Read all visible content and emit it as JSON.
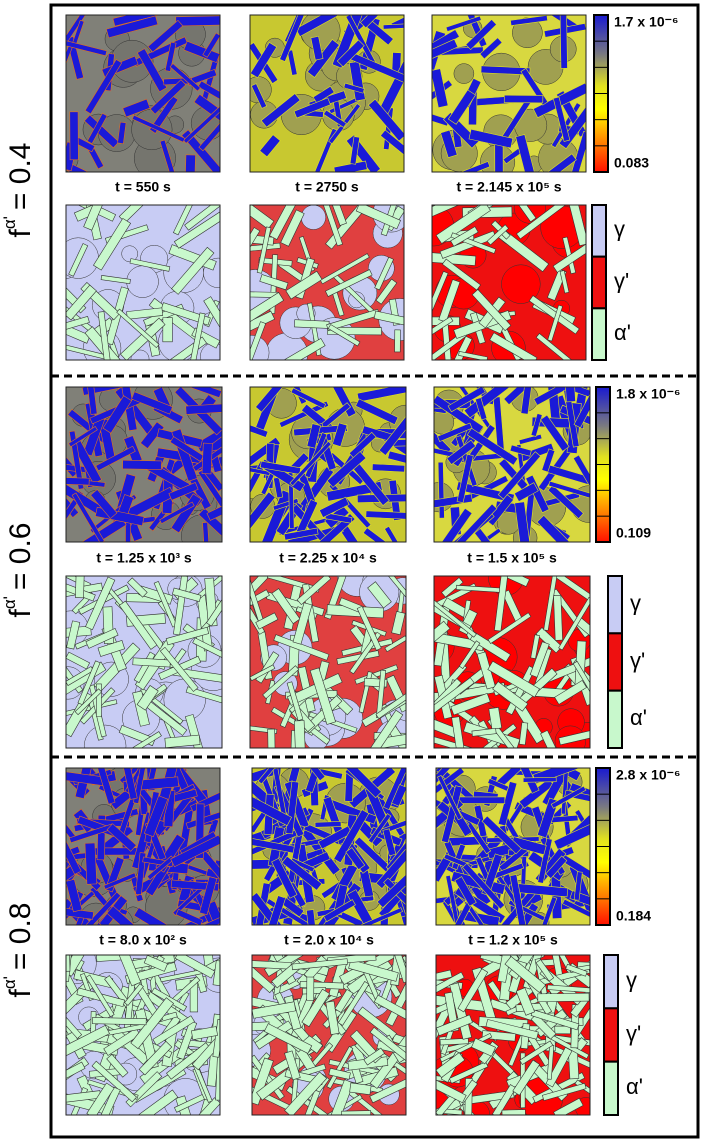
{
  "rows": [
    {
      "label": {
        "f": "f",
        "sup": "α'",
        "value": "= 0.4"
      },
      "times": [
        "t = 550 s",
        "t = 2750 s",
        "t = 2.145 x 10⁵ s"
      ],
      "colorbar": {
        "max": "1.7 x 10⁻⁶",
        "min": "0.083"
      }
    },
    {
      "label": {
        "f": "f",
        "sup": "α'",
        "value": "= 0.6"
      },
      "times": [
        "t = 1.25 x 10³ s",
        "t = 2.25 x 10⁴ s",
        "t = 1.5 x 10⁵ s"
      ],
      "colorbar": {
        "max": "1.8 x 10⁻⁶",
        "min": "0.109"
      }
    },
    {
      "label": {
        "f": "f",
        "sup": "α'",
        "value": "= 0.8"
      },
      "times": [
        "t = 8.0 x 10² s",
        "t = 2.0 x 10⁴ s",
        "t = 1.2 x 10⁵ s"
      ],
      "colorbar": {
        "max": "2.8 x 10⁻⁶",
        "min": "0.184"
      }
    }
  ],
  "legend": [
    "γ",
    "γ'",
    "α'"
  ]
}
